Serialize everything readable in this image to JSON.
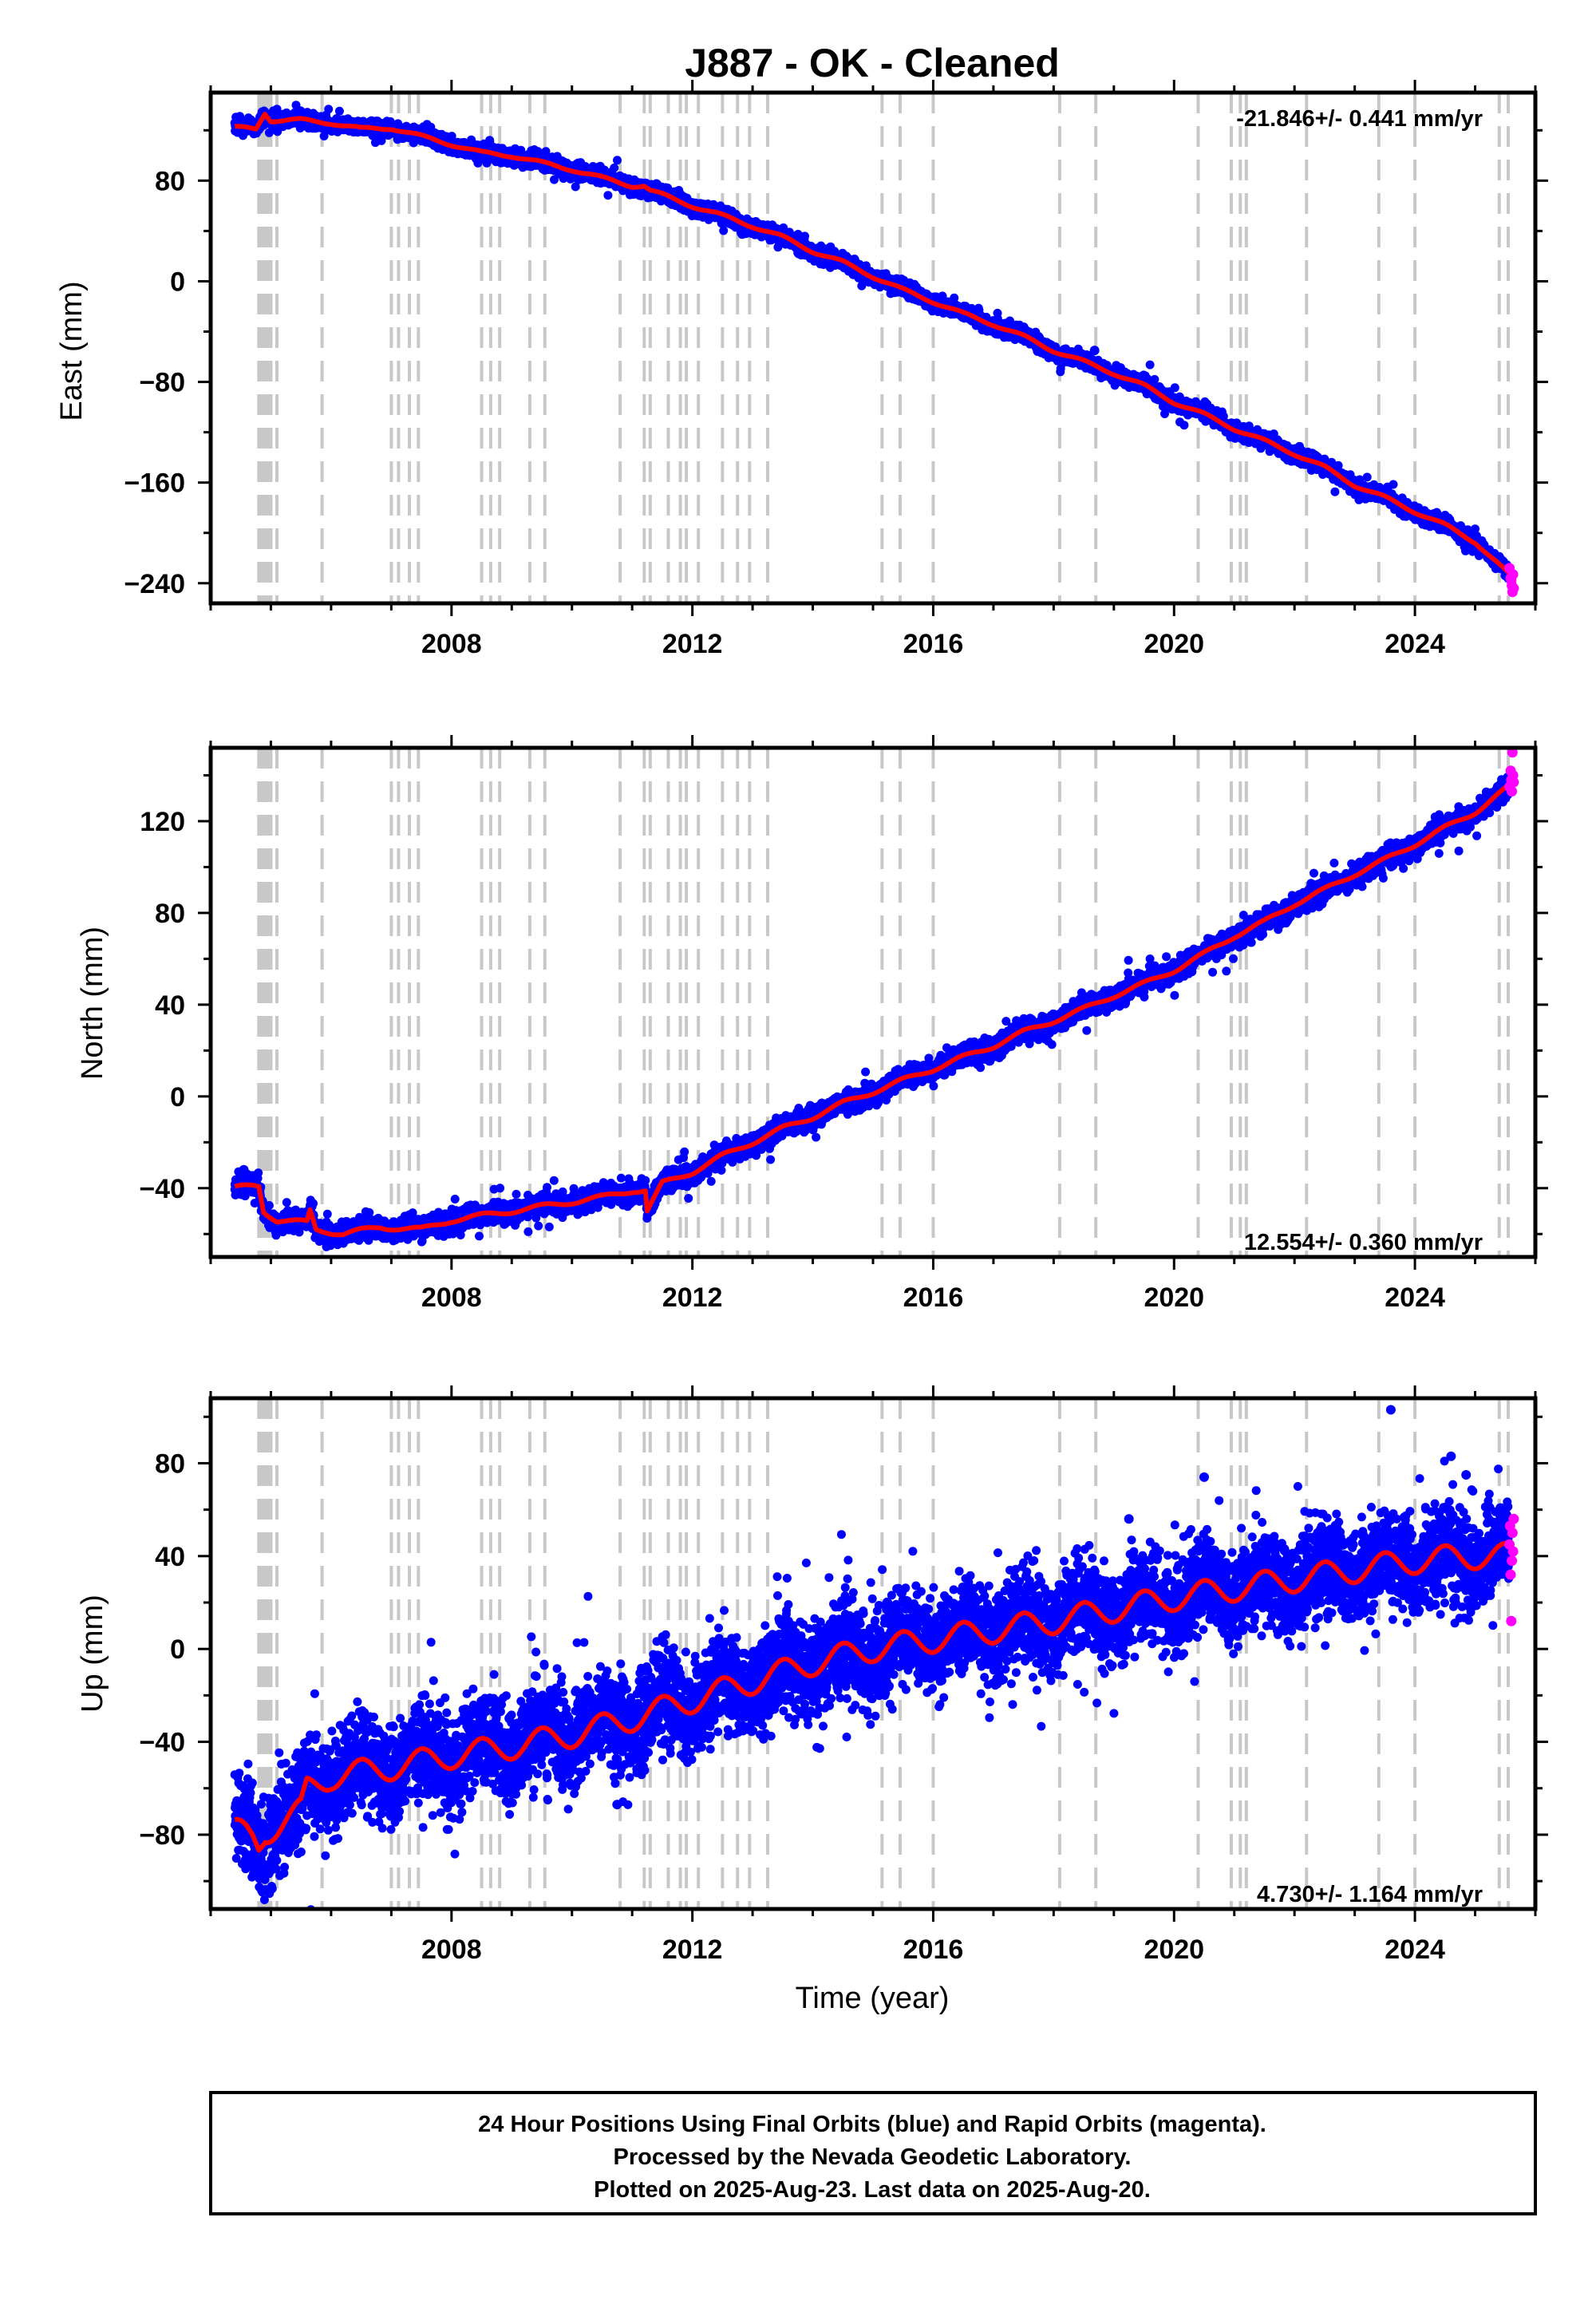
{
  "title": "J887  - OK - Cleaned",
  "xlabel": "Time (year)",
  "footer": [
    "24 Hour Positions Using Final Orbits (blue) and Rapid Orbits (magenta).",
    "Processed by the Nevada Geodetic Laboratory.",
    "Plotted on 2025-Aug-23. Last data on 2025-Aug-20."
  ],
  "colors": {
    "final": "#0000ff",
    "rapid": "#ff00ff",
    "model": "#ff0000",
    "event_line": "#c8c8c8"
  },
  "chart_data": [
    {
      "type": "scatter",
      "name": "east",
      "ylabel": "East (mm)",
      "rate_text": "-21.846+/- 0.441 mm/yr",
      "rate_position": "top-right",
      "xlim": [
        2004.0,
        2026.0
      ],
      "ylim": [
        -256,
        150
      ],
      "x_ticks": [
        2008,
        2012,
        2016,
        2020,
        2024
      ],
      "y_ticks": [
        -240,
        -160,
        -80,
        0,
        80
      ],
      "grid": false,
      "model_anchors": {
        "x": [
          2004.4,
          2004.75,
          2004.9,
          2005.0,
          2005.5,
          2006.0,
          2006.5,
          2007.0,
          2007.5,
          2008.0,
          2008.5,
          2009.0,
          2009.5,
          2010.0,
          2010.5,
          2011.0,
          2011.2,
          2011.3,
          2012.0,
          2012.5,
          2013.0,
          2013.5,
          2014.0,
          2014.5,
          2015.0,
          2015.5,
          2016.0,
          2016.5,
          2017.0,
          2017.5,
          2018.0,
          2018.5,
          2019.0,
          2019.5,
          2020.0,
          2020.5,
          2021.0,
          2021.5,
          2022.0,
          2022.5,
          2023.0,
          2023.5,
          2024.0,
          2024.5,
          2025.0,
          2025.62
        ],
        "y": [
          122,
          121,
          134,
          128,
          128,
          126,
          121,
          122,
          115,
          109,
          102,
          100,
          94,
          89,
          82,
          76,
          76,
          72,
          60,
          52,
          44,
          35,
          24,
          15,
          4,
          -7,
          -16,
          -26,
          -34,
          -44,
          -55,
          -64,
          -73,
          -83,
          -96,
          -106,
          -117,
          -127,
          -137,
          -148,
          -162,
          -172,
          -183,
          -194,
          -207,
          -236
        ]
      },
      "x": [],
      "y": [],
      "rapid": {
        "x": [
          2025.57,
          2025.59,
          2025.6,
          2025.61,
          2025.62,
          2025.63,
          2025.64
        ],
        "y": [
          -228,
          -236,
          -238,
          -242,
          -247,
          -233,
          -244
        ]
      },
      "outliers": {
        "x": [
          2018.68
        ],
        "y": [
          -55
        ]
      }
    },
    {
      "type": "scatter",
      "name": "north",
      "ylabel": "North (mm)",
      "rate_text": "12.554+/- 0.360 mm/yr",
      "rate_position": "bottom-right",
      "xlim": [
        2004.0,
        2026.0
      ],
      "ylim": [
        -70,
        152
      ],
      "x_ticks": [
        2008,
        2012,
        2016,
        2020,
        2024
      ],
      "y_ticks": [
        -40,
        0,
        40,
        80,
        120
      ],
      "grid": false,
      "model_anchors": {
        "x": [
          2004.4,
          2004.7,
          2004.8,
          2004.88,
          2005.1,
          2005.6,
          2005.65,
          2005.75,
          2006.2,
          2006.8,
          2007.5,
          2008.0,
          2008.5,
          2009.0,
          2009.5,
          2010.0,
          2010.5,
          2011.0,
          2011.22,
          2011.25,
          2011.5,
          2012.0,
          2012.5,
          2013.0,
          2013.5,
          2014.0,
          2014.5,
          2015.0,
          2015.5,
          2016.0,
          2016.5,
          2017.0,
          2017.5,
          2018.0,
          2018.5,
          2019.0,
          2019.5,
          2020.0,
          2020.5,
          2021.0,
          2021.5,
          2022.0,
          2022.5,
          2023.0,
          2023.5,
          2024.0,
          2024.5,
          2025.0,
          2025.62
        ],
        "y": [
          -40,
          -39,
          -39,
          -50,
          -54,
          -55,
          -50,
          -58,
          -60,
          -57,
          -58,
          -54,
          -52,
          -50,
          -48,
          -46,
          -44,
          -41,
          -41,
          -50,
          -38,
          -33,
          -26,
          -20,
          -14,
          -9,
          -3,
          2,
          7,
          12,
          17,
          22,
          28,
          33,
          38,
          44,
          49,
          55,
          62,
          70,
          76,
          84,
          90,
          97,
          103,
          110,
          117,
          124,
          136
        ]
      },
      "x": [],
      "y": [],
      "rapid": {
        "x": [
          2025.57,
          2025.59,
          2025.6,
          2025.61,
          2025.62,
          2025.63,
          2025.64
        ],
        "y": [
          135,
          142,
          138,
          133,
          150,
          140,
          137
        ]
      },
      "outliers": {
        "x": [
          2004.55,
          2014.15
        ],
        "y": [
          -32,
          -3
        ]
      }
    },
    {
      "type": "scatter",
      "name": "up",
      "ylabel": "Up (mm)",
      "rate_text": "4.730+/- 1.164 mm/yr",
      "rate_position": "bottom-right",
      "xlim": [
        2004.0,
        2026.0
      ],
      "ylim": [
        -112,
        108
      ],
      "x_ticks": [
        2008,
        2012,
        2016,
        2020,
        2024
      ],
      "y_ticks": [
        -80,
        -40,
        0,
        40,
        80
      ],
      "grid": false,
      "model_anchors": {
        "x": [
          2004.4,
          2004.7,
          2004.8,
          2004.9,
          2005.5,
          2005.6,
          2006.0,
          2007.0,
          2008.0,
          2009.0,
          2010.0,
          2011.0,
          2012.0,
          2013.0,
          2014.0,
          2015.0,
          2016.0,
          2017.0,
          2018.0,
          2019.0,
          2020.0,
          2021.0,
          2022.0,
          2023.0,
          2024.0,
          2025.0,
          2025.62
        ],
        "y": [
          -78,
          -82,
          -85,
          -79,
          -70,
          -60,
          -55,
          -51,
          -46,
          -42,
          -37,
          -30,
          -22,
          -14,
          -6,
          0,
          4,
          8,
          12,
          17,
          22,
          26,
          30,
          34,
          38,
          40,
          40
        ]
      },
      "x": [],
      "y": [],
      "rapid": {
        "x": [
          2025.57,
          2025.58,
          2025.59,
          2025.6,
          2025.61,
          2025.62,
          2025.63,
          2025.64
        ],
        "y": [
          45,
          53,
          32,
          12,
          38,
          50,
          42,
          56
        ]
      },
      "outliers": {
        "x": [
          2023.6,
          2020.5,
          2024.6,
          2004.85,
          2010.75,
          2019.25,
          2015.25,
          2024.85
        ],
        "y": [
          103,
          74,
          83,
          -104,
          -67,
          56,
          -8,
          75
        ]
      }
    }
  ],
  "event_lines_x": [
    2004.8,
    2004.85,
    2004.9,
    2004.95,
    2005.0,
    2005.1,
    2005.85,
    2007.0,
    2007.12,
    2007.3,
    2007.45,
    2008.5,
    2008.65,
    2008.8,
    2009.3,
    2009.55,
    2010.8,
    2011.2,
    2011.3,
    2011.6,
    2011.8,
    2011.9,
    2012.1,
    2012.5,
    2012.75,
    2012.95,
    2013.25,
    2015.15,
    2015.45,
    2016.0,
    2018.1,
    2018.7,
    2020.4,
    2020.95,
    2021.1,
    2021.2,
    2022.2,
    2023.4,
    2024.0,
    2025.4,
    2025.55
  ]
}
